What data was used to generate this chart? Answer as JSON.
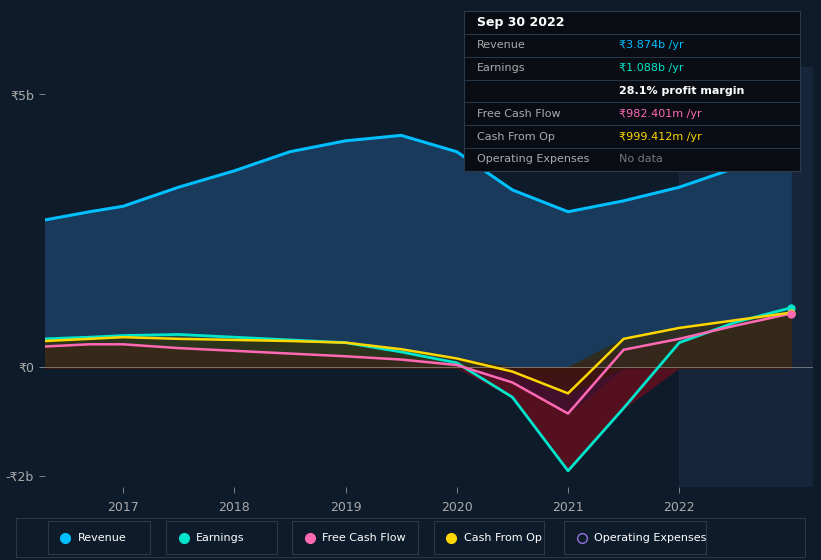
{
  "bg_color": "#0d1b2a",
  "plot_bg_color": "#0d1b2a",
  "y5b_label": "₹5b",
  "y0_label": "₹0",
  "ym2b_label": "-₹2b",
  "ylim": [
    -2200000000.0,
    5500000000.0
  ],
  "years": [
    2016.3,
    2016.7,
    2017.0,
    2017.5,
    2018.0,
    2018.5,
    2019.0,
    2019.5,
    2020.0,
    2020.5,
    2021.0,
    2021.5,
    2022.0,
    2022.5,
    2023.0
  ],
  "revenue": [
    2700000000.0,
    2850000000.0,
    2950000000.0,
    3300000000.0,
    3600000000.0,
    3950000000.0,
    4150000000.0,
    4250000000.0,
    3950000000.0,
    3250000000.0,
    2850000000.0,
    3050000000.0,
    3300000000.0,
    3650000000.0,
    3870000000.0
  ],
  "earnings": [
    520000000.0,
    550000000.0,
    580000000.0,
    600000000.0,
    550000000.0,
    500000000.0,
    450000000.0,
    280000000.0,
    80000000.0,
    -550000000.0,
    -1900000000.0,
    -750000000.0,
    450000000.0,
    820000000.0,
    1088000000.0
  ],
  "free_cash_flow": [
    380000000.0,
    420000000.0,
    420000000.0,
    350000000.0,
    300000000.0,
    250000000.0,
    200000000.0,
    140000000.0,
    40000000.0,
    -280000000.0,
    -850000000.0,
    320000000.0,
    520000000.0,
    760000000.0,
    982000000.0
  ],
  "cash_from_op": [
    480000000.0,
    520000000.0,
    550000000.0,
    520000000.0,
    500000000.0,
    480000000.0,
    450000000.0,
    330000000.0,
    160000000.0,
    -80000000.0,
    -480000000.0,
    520000000.0,
    720000000.0,
    860000000.0,
    999000000.0
  ],
  "revenue_color": "#00bfff",
  "revenue_fill": "#1a3a5c",
  "earnings_color": "#00e5cc",
  "earnings_fill_pos": "#1a4a4a",
  "earnings_fill_neg": "#5a1020",
  "fcf_color": "#ff69b4",
  "cfo_color": "#ffd700",
  "shaded_region_start": 2022.0,
  "x_tick_labels": [
    "2017",
    "2018",
    "2019",
    "2020",
    "2021",
    "2022"
  ],
  "x_tick_positions": [
    2017,
    2018,
    2019,
    2020,
    2021,
    2022
  ],
  "tooltip_rows": [
    {
      "label": "Sep 30 2022",
      "value": null,
      "vcolor": null,
      "is_title": true
    },
    {
      "label": "Revenue",
      "value": "₹3.874b /yr",
      "vcolor": "#00bfff",
      "is_title": false
    },
    {
      "label": "Earnings",
      "value": "₹1.088b /yr",
      "vcolor": "#00e5cc",
      "is_title": false
    },
    {
      "label": "",
      "value": "28.1% profit margin",
      "vcolor": "white",
      "is_title": false,
      "bold": true
    },
    {
      "label": "Free Cash Flow",
      "value": "₹982.401m /yr",
      "vcolor": "#ff69b4",
      "is_title": false
    },
    {
      "label": "Cash From Op",
      "value": "₹999.412m /yr",
      "vcolor": "#ffd700",
      "is_title": false
    },
    {
      "label": "Operating Expenses",
      "value": "No data",
      "vcolor": "#777777",
      "is_title": false
    }
  ],
  "legend_items": [
    {
      "label": "Revenue",
      "color": "#00bfff",
      "open": false
    },
    {
      "label": "Earnings",
      "color": "#00e5cc",
      "open": false
    },
    {
      "label": "Free Cash Flow",
      "color": "#ff69b4",
      "open": false
    },
    {
      "label": "Cash From Op",
      "color": "#ffd700",
      "open": false
    },
    {
      "label": "Operating Expenses",
      "color": "#9370db",
      "open": true
    }
  ]
}
